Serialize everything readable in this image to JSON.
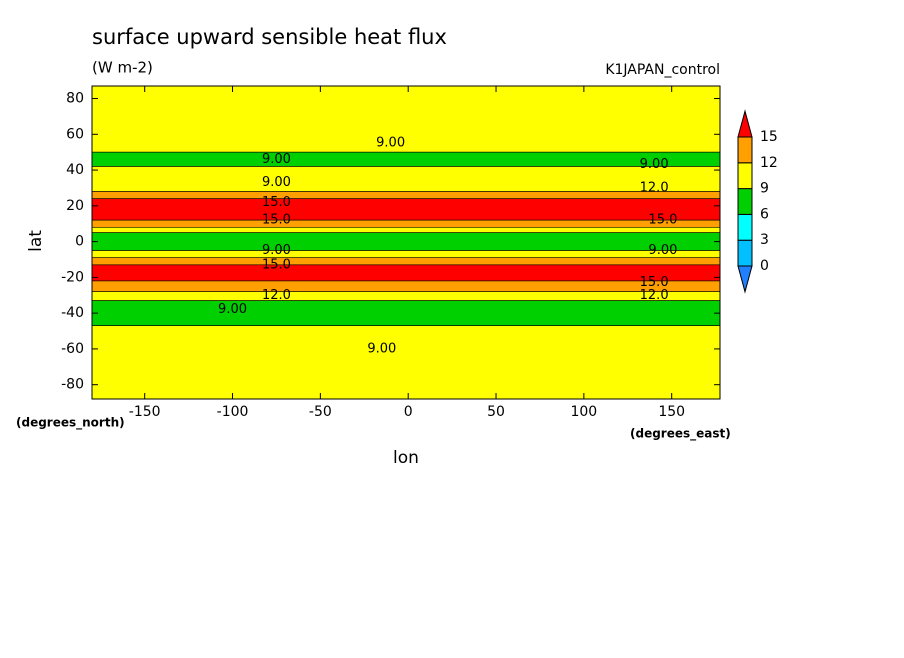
{
  "chart_data": {
    "type": "contour",
    "title": "surface upward sensible heat flux",
    "units": "(W m-2)",
    "subtitle": "K1JAPAN_control",
    "xlabel": "lon",
    "ylabel": "lat",
    "xunits": "(degrees_east)",
    "yunits": "(degrees_north)",
    "xlim": [
      -180,
      177.5
    ],
    "ylim": [
      -88,
      87
    ],
    "xticks": [
      -150,
      -100,
      -50,
      0,
      50,
      100,
      150
    ],
    "yticks": [
      80,
      60,
      40,
      20,
      0,
      -20,
      -40,
      -60,
      -80
    ],
    "levels": [
      0,
      3,
      6,
      9,
      12,
      15
    ],
    "colors": [
      "#2080ff",
      "#00c0ff",
      "#00ffff",
      "#00d000",
      "#ffff00",
      "#ffa000",
      "#ff0000"
    ],
    "lat_edges": [
      87,
      50,
      42,
      28,
      24,
      12,
      8,
      5,
      -5,
      -9,
      -13,
      -22,
      -28,
      -33,
      -47,
      -88
    ],
    "values": [
      10.5,
      7.5,
      10.5,
      13.5,
      16,
      13.5,
      10.5,
      7.5,
      10.5,
      13.5,
      16,
      13.5,
      10.5,
      7.5,
      10.5
    ],
    "contour_labels": [
      {
        "text": "9.00",
        "lon": -10,
        "lat": 55
      },
      {
        "text": "9.00",
        "lon": -75,
        "lat": 46
      },
      {
        "text": "9.00",
        "lon": -75,
        "lat": 33
      },
      {
        "text": "15.0",
        "lon": -75,
        "lat": 22
      },
      {
        "text": "15.0",
        "lon": -75,
        "lat": 12
      },
      {
        "text": "9.00",
        "lon": -75,
        "lat": -5
      },
      {
        "text": "15.0",
        "lon": -75,
        "lat": -13
      },
      {
        "text": "9.00",
        "lon": -100,
        "lat": -38
      },
      {
        "text": "12.0",
        "lon": -75,
        "lat": -30
      },
      {
        "text": "9.00",
        "lon": -15,
        "lat": -60
      },
      {
        "text": "9.00",
        "lon": 140,
        "lat": 43
      },
      {
        "text": "12.0",
        "lon": 140,
        "lat": 30
      },
      {
        "text": "15.0",
        "lon": 145,
        "lat": 12
      },
      {
        "text": "9.00",
        "lon": 145,
        "lat": -5
      },
      {
        "text": "15.0",
        "lon": 140,
        "lat": -23
      },
      {
        "text": "12.0",
        "lon": 140,
        "lat": -30
      }
    ]
  }
}
